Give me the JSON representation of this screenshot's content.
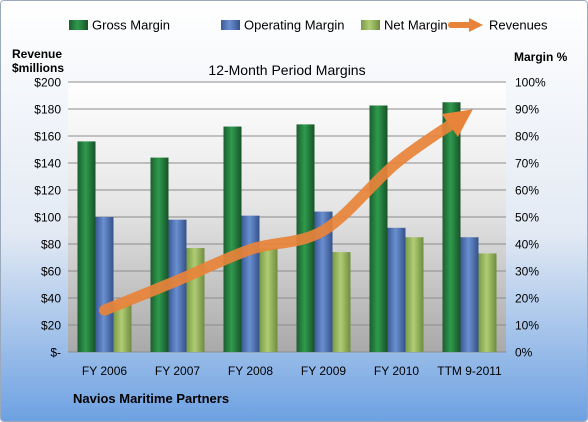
{
  "chart_data": {
    "type": "bar",
    "title": "12-Month Period Margins",
    "footer": "Navios Maritime Partners",
    "left_axis_label": [
      "Revenue",
      "$millions"
    ],
    "right_axis_label": "Margin %",
    "categories": [
      "FY 2006",
      "FY 2007",
      "FY 2008",
      "FY 2009",
      "FY 2010",
      "TTM 9-2011"
    ],
    "left_ticks": [
      "$-",
      "$20",
      "$40",
      "$60",
      "$80",
      "$100",
      "$120",
      "$140",
      "$160",
      "$180",
      "$200"
    ],
    "right_ticks": [
      "0%",
      "10%",
      "20%",
      "30%",
      "40%",
      "50%",
      "60%",
      "70%",
      "80%",
      "90%",
      "100%"
    ],
    "left_ylim": [
      0,
      200
    ],
    "right_ylim": [
      0,
      100
    ],
    "series": [
      {
        "name": "Gross Margin",
        "kind": "bar",
        "axis": "right",
        "color": "#1f7a3c",
        "values": [
          78,
          72,
          83.5,
          84.3,
          91.3,
          92.5
        ]
      },
      {
        "name": "Operating Margin",
        "kind": "bar",
        "axis": "right",
        "color": "#4a6fb5",
        "values": [
          50,
          49,
          50.5,
          52,
          46,
          42.5
        ]
      },
      {
        "name": "Net Margin",
        "kind": "bar",
        "axis": "right",
        "color": "#92b456",
        "values": [
          18,
          38.5,
          38.5,
          37,
          42.5,
          36.5
        ]
      },
      {
        "name": "Revenues",
        "kind": "line",
        "axis": "left",
        "color": "#e8833a",
        "values": [
          31,
          53,
          76,
          90,
          140,
          178
        ]
      }
    ],
    "legend_position": "top",
    "grid": true
  }
}
